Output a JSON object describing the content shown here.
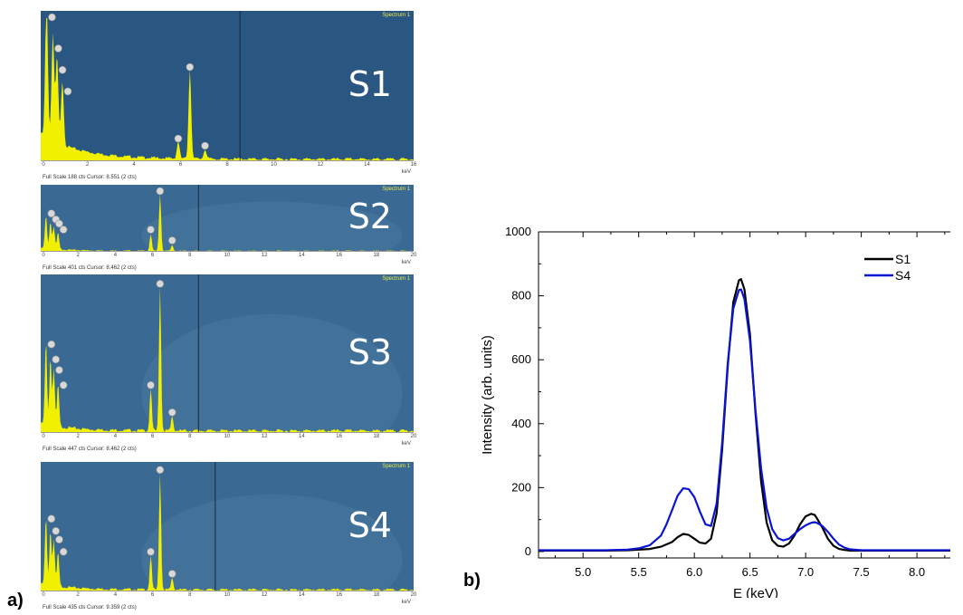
{
  "labels": {
    "panel_a": "a)",
    "panel_b": "b)"
  },
  "colors": {
    "eds_bg": "#2a5682",
    "eds_bg_light": "#3a6a93",
    "eds_peak": "#f0f000",
    "s1": "#000000",
    "s4": "#0a14d2"
  },
  "eds_spectra": [
    {
      "name": "S1",
      "spectrum_label": "Spectrum 1",
      "ticks": [
        "0",
        "2",
        "4",
        "6",
        "8",
        "10",
        "12",
        "14",
        "16"
      ],
      "unit": "keV",
      "info": "Full Scale 188 cts Cursor: 8.551  (2 cts)",
      "max_kev": 16,
      "cursor_kev": 8.551
    },
    {
      "name": "S2",
      "spectrum_label": "Spectrum 1",
      "ticks": [
        "0",
        "2",
        "4",
        "6",
        "8",
        "10",
        "12",
        "14",
        "16",
        "18",
        "20"
      ],
      "unit": "keV",
      "info": "Full Scale 401 cts Cursor: 8.462  (2 cts)",
      "max_kev": 20,
      "cursor_kev": 8.462
    },
    {
      "name": "S3",
      "spectrum_label": "Spectrum 1",
      "ticks": [
        "0",
        "2",
        "4",
        "6",
        "8",
        "10",
        "12",
        "14",
        "16",
        "18",
        "20"
      ],
      "unit": "keV",
      "info": "Full Scale 447 cts Cursor: 8.462  (2 cts)",
      "max_kev": 20,
      "cursor_kev": 8.462
    },
    {
      "name": "S4",
      "spectrum_label": "Spectrum 1",
      "ticks": [
        "0",
        "2",
        "4",
        "6",
        "8",
        "10",
        "12",
        "14",
        "16",
        "18",
        "20"
      ],
      "unit": "keV",
      "info": "Full Scale 435 cts Cursor: 9.359  (2 cts)",
      "max_kev": 20,
      "cursor_kev": 9.359
    }
  ],
  "chart_data": {
    "type": "line",
    "xlabel": "E (keV)",
    "ylabel": "Intensity (arb. units)",
    "xlim": [
      4.6,
      8.3
    ],
    "ylim": [
      -20,
      1000
    ],
    "xticks": [
      "5.0",
      "5.5",
      "6.0",
      "6.5",
      "7.0",
      "7.5",
      "8.0"
    ],
    "yticks": [
      "0",
      "200",
      "400",
      "600",
      "800",
      "1000"
    ],
    "legend": "top-right",
    "series": [
      {
        "name": "S1",
        "color": "#000000",
        "x": [
          4.6,
          4.8,
          5.0,
          5.2,
          5.4,
          5.6,
          5.7,
          5.8,
          5.85,
          5.9,
          5.95,
          6.0,
          6.05,
          6.1,
          6.15,
          6.2,
          6.25,
          6.3,
          6.35,
          6.4,
          6.42,
          6.45,
          6.5,
          6.55,
          6.6,
          6.65,
          6.7,
          6.75,
          6.8,
          6.85,
          6.9,
          6.95,
          7.0,
          7.05,
          7.08,
          7.1,
          7.15,
          7.2,
          7.25,
          7.3,
          7.35,
          7.4,
          7.5,
          7.7,
          7.9,
          8.1,
          8.3
        ],
        "y": [
          3,
          3,
          3,
          3,
          4,
          8,
          15,
          30,
          45,
          55,
          52,
          40,
          28,
          25,
          40,
          120,
          320,
          580,
          780,
          848,
          852,
          820,
          680,
          430,
          220,
          90,
          35,
          18,
          15,
          25,
          50,
          85,
          110,
          118,
          115,
          105,
          75,
          40,
          18,
          8,
          5,
          3,
          3,
          3,
          3,
          3,
          3
        ]
      },
      {
        "name": "S4",
        "color": "#0a14d2",
        "x": [
          4.6,
          4.8,
          5.0,
          5.2,
          5.4,
          5.5,
          5.6,
          5.7,
          5.75,
          5.8,
          5.85,
          5.9,
          5.95,
          6.0,
          6.05,
          6.1,
          6.15,
          6.2,
          6.25,
          6.3,
          6.35,
          6.4,
          6.42,
          6.45,
          6.5,
          6.55,
          6.6,
          6.65,
          6.7,
          6.75,
          6.8,
          6.85,
          6.9,
          6.95,
          7.0,
          7.05,
          7.08,
          7.1,
          7.15,
          7.2,
          7.25,
          7.3,
          7.35,
          7.4,
          7.5,
          7.7,
          7.9,
          8.1,
          8.3
        ],
        "y": [
          4,
          4,
          4,
          4,
          6,
          10,
          20,
          50,
          85,
          130,
          175,
          198,
          195,
          170,
          125,
          85,
          80,
          150,
          340,
          590,
          760,
          818,
          820,
          790,
          660,
          440,
          260,
          135,
          70,
          42,
          35,
          40,
          55,
          70,
          82,
          90,
          92,
          90,
          80,
          62,
          40,
          22,
          12,
          7,
          4,
          4,
          4,
          4,
          4
        ]
      }
    ]
  }
}
